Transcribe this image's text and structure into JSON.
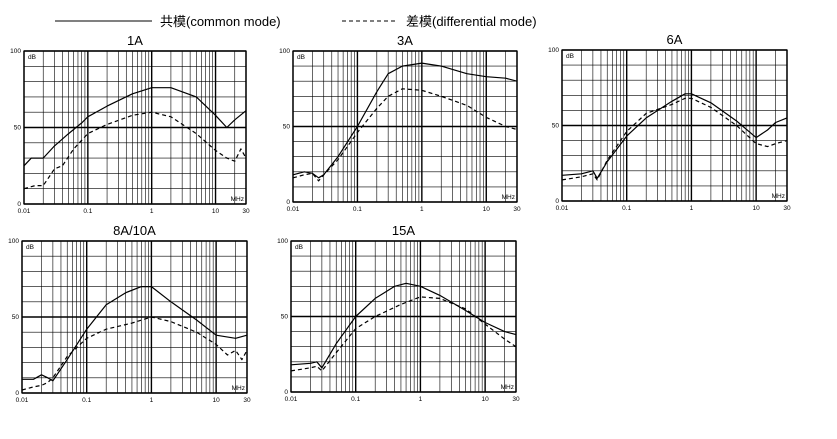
{
  "legend": {
    "common_mode": "共模(common mode)",
    "differential_mode": "差模(differential mode)"
  },
  "chart_data": [
    {
      "type": "line",
      "title": "1A",
      "xscale": "log",
      "xlim": [
        0.01,
        30
      ],
      "ylim": [
        0,
        100
      ],
      "x_ticks": [
        "0.01",
        "0.1",
        "1",
        "10",
        "30"
      ],
      "y_ticks": [
        "0",
        "50",
        "100"
      ],
      "ylabel": "dB",
      "xlabel": "MHz",
      "series": [
        {
          "name": "共模(common mode)",
          "style": "solid",
          "x": [
            0.01,
            0.013,
            0.02,
            0.03,
            0.05,
            0.08,
            0.1,
            0.2,
            0.5,
            1,
            2,
            5,
            10,
            15,
            20,
            30
          ],
          "y": [
            25,
            30,
            30,
            38,
            46,
            53,
            57,
            64,
            72,
            76,
            76,
            70,
            58,
            50,
            55,
            61
          ]
        },
        {
          "name": "差模(differential mode)",
          "style": "dashed",
          "x": [
            0.01,
            0.015,
            0.02,
            0.025,
            0.03,
            0.04,
            0.06,
            0.1,
            0.2,
            0.5,
            1,
            2,
            5,
            10,
            15,
            20,
            25,
            30
          ],
          "y": [
            10,
            12,
            12,
            18,
            23,
            25,
            36,
            46,
            52,
            58,
            60,
            57,
            46,
            35,
            30,
            28,
            36,
            30
          ]
        }
      ]
    },
    {
      "type": "line",
      "title": "3A",
      "xscale": "log",
      "xlim": [
        0.01,
        30
      ],
      "ylim": [
        0,
        100
      ],
      "x_ticks": [
        "0.01",
        "0.1",
        "1",
        "10",
        "30"
      ],
      "y_ticks": [
        "0",
        "50",
        "100"
      ],
      "ylabel": "dB",
      "xlabel": "MHz",
      "series": [
        {
          "name": "共模(common mode)",
          "style": "solid",
          "x": [
            0.01,
            0.015,
            0.02,
            0.025,
            0.03,
            0.05,
            0.1,
            0.2,
            0.3,
            0.5,
            1,
            2,
            5,
            10,
            20,
            30
          ],
          "y": [
            18,
            20,
            19,
            16,
            18,
            30,
            50,
            73,
            85,
            90,
            92,
            90,
            85,
            83,
            82,
            80
          ]
        },
        {
          "name": "差模(differential mode)",
          "style": "dashed",
          "x": [
            0.01,
            0.015,
            0.02,
            0.025,
            0.03,
            0.05,
            0.1,
            0.2,
            0.3,
            0.5,
            1,
            2,
            5,
            10,
            20,
            30
          ],
          "y": [
            16,
            18,
            19,
            14,
            18,
            28,
            46,
            62,
            70,
            75,
            74,
            70,
            64,
            56,
            50,
            48
          ]
        }
      ]
    },
    {
      "type": "line",
      "title": "6A",
      "xscale": "log",
      "xlim": [
        0.01,
        30
      ],
      "ylim": [
        0,
        100
      ],
      "x_ticks": [
        "0.01",
        "0.1",
        "1",
        "10",
        "30"
      ],
      "y_ticks": [
        "0",
        "50",
        "100"
      ],
      "ylabel": "dB",
      "xlabel": "MHz",
      "series": [
        {
          "name": "共模(common mode)",
          "style": "solid",
          "x": [
            0.01,
            0.02,
            0.03,
            0.035,
            0.05,
            0.1,
            0.2,
            0.5,
            0.8,
            1,
            2,
            5,
            10,
            15,
            20,
            30
          ],
          "y": [
            17,
            18,
            20,
            15,
            26,
            43,
            55,
            66,
            71,
            71,
            65,
            53,
            42,
            47,
            52,
            55
          ]
        },
        {
          "name": "差模(differential mode)",
          "style": "dashed",
          "x": [
            0.01,
            0.02,
            0.03,
            0.035,
            0.05,
            0.1,
            0.2,
            0.5,
            0.8,
            1,
            2,
            5,
            10,
            15,
            20,
            30
          ],
          "y": [
            14,
            16,
            18,
            14,
            27,
            46,
            58,
            64,
            68,
            68,
            62,
            50,
            38,
            36,
            38,
            40
          ]
        }
      ]
    },
    {
      "type": "line",
      "title": "8A/10A",
      "xscale": "log",
      "xlim": [
        0.01,
        30
      ],
      "ylim": [
        0,
        100
      ],
      "x_ticks": [
        "0.01",
        "0.1",
        "1",
        "10",
        "30"
      ],
      "y_ticks": [
        "0",
        "50",
        "100"
      ],
      "ylabel": "dB",
      "xlabel": "MHz",
      "series": [
        {
          "name": "共模(common mode)",
          "style": "solid",
          "x": [
            0.01,
            0.015,
            0.02,
            0.025,
            0.03,
            0.05,
            0.1,
            0.2,
            0.4,
            0.7,
            1,
            2,
            5,
            10,
            20,
            30
          ],
          "y": [
            9,
            9,
            12,
            10,
            8,
            22,
            42,
            58,
            66,
            70,
            70,
            60,
            48,
            38,
            36,
            38
          ]
        },
        {
          "name": "差模(differential mode)",
          "style": "dashed",
          "x": [
            0.01,
            0.015,
            0.02,
            0.025,
            0.03,
            0.05,
            0.1,
            0.2,
            0.5,
            1,
            2,
            5,
            10,
            15,
            20,
            25,
            30
          ],
          "y": [
            2,
            4,
            5,
            7,
            10,
            24,
            36,
            42,
            46,
            50,
            47,
            40,
            32,
            25,
            28,
            22,
            28
          ]
        }
      ]
    },
    {
      "type": "line",
      "title": "15A",
      "xscale": "log",
      "xlim": [
        0.01,
        30
      ],
      "ylim": [
        0,
        100
      ],
      "x_ticks": [
        "0.01",
        "0.1",
        "1",
        "10",
        "30"
      ],
      "y_ticks": [
        "0",
        "50",
        "100"
      ],
      "ylabel": "dB",
      "xlabel": "MHz",
      "series": [
        {
          "name": "共模(common mode)",
          "style": "solid",
          "x": [
            0.01,
            0.02,
            0.025,
            0.03,
            0.05,
            0.1,
            0.2,
            0.4,
            0.6,
            1,
            2,
            5,
            10,
            20,
            30
          ],
          "y": [
            18,
            19,
            20,
            16,
            32,
            50,
            62,
            70,
            72,
            70,
            64,
            54,
            46,
            40,
            38
          ]
        },
        {
          "name": "差模(differential mode)",
          "style": "dashed",
          "x": [
            0.01,
            0.02,
            0.025,
            0.03,
            0.05,
            0.1,
            0.2,
            0.5,
            1,
            2,
            5,
            10,
            20,
            30
          ],
          "y": [
            14,
            16,
            17,
            14,
            26,
            42,
            50,
            58,
            63,
            62,
            55,
            45,
            35,
            30
          ]
        }
      ]
    }
  ]
}
